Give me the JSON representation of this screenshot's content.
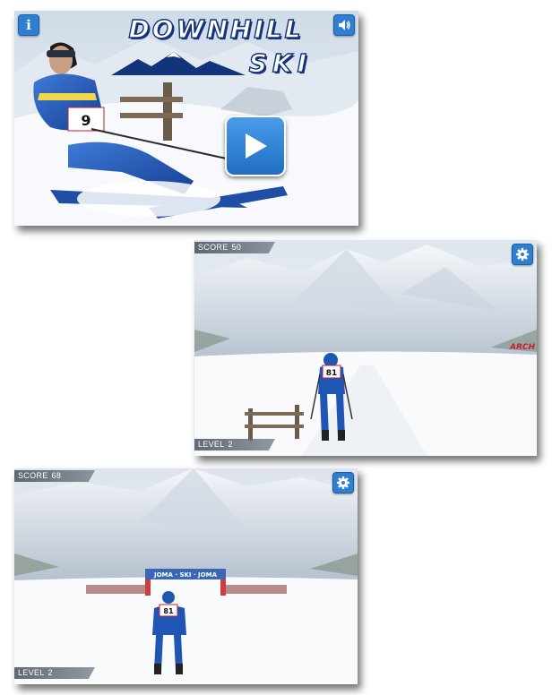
{
  "title_screen": {
    "logo_line1": "DOWNHILL",
    "logo_line2": "SKI",
    "info_icon": "info-icon",
    "info_glyph": "i",
    "sound_icon": "speaker-icon",
    "play_icon": "play-icon",
    "skier_bib": "9",
    "accent_color": "#2f7fd1"
  },
  "gameplay_1": {
    "score_label": "SCORE",
    "score_value": "50",
    "level_label": "LEVEL",
    "level_value": "2",
    "settings_icon": "gear-icon",
    "skier_bib": "81",
    "banner_text": "ARCH"
  },
  "gameplay_2": {
    "score_label": "SCORE",
    "score_value": "68",
    "level_label": "LEVEL",
    "level_value": "2",
    "settings_icon": "gear-icon",
    "skier_bib": "81",
    "gate_text": "JOMA · SKI · JOMA"
  }
}
